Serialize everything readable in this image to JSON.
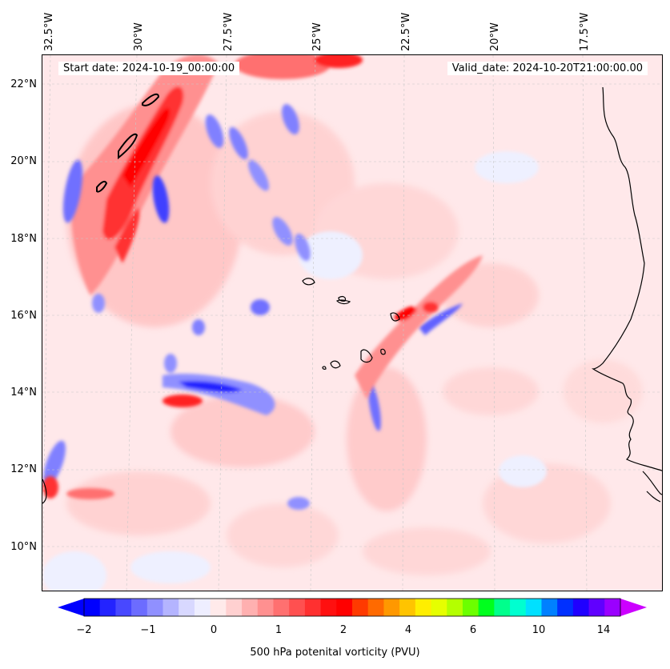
{
  "map": {
    "start_date_text": "Start date: 2024-10-19_00:00:00",
    "valid_date_text": "Valid_date: 2024-10-20T21:00:00.00",
    "lon_labels": [
      "32.5°W",
      "30°W",
      "27.5°W",
      "25°W",
      "22.5°W",
      "20°W",
      "17.5°W"
    ],
    "lat_labels": [
      "22°N",
      "20°N",
      "18°N",
      "16°N",
      "14°N",
      "12°N",
      "10°N"
    ],
    "background_color": "#ffe8ea",
    "coastline_color": "#000000"
  },
  "colorbar": {
    "label": "500 hPa potenital vorticity (PVU)",
    "tick_labels": [
      "−2",
      "−1",
      "0",
      "1",
      "2",
      "4",
      "6",
      "10",
      "14"
    ],
    "colors": [
      "#0000ff",
      "#2323ff",
      "#4848ff",
      "#6c6cff",
      "#9090ff",
      "#b4b4ff",
      "#d8d8ff",
      "#eeeeff",
      "#ffeaea",
      "#ffd0d0",
      "#ffb0b0",
      "#ff9090",
      "#ff7070",
      "#ff5050",
      "#ff3030",
      "#ff1010",
      "#ff0000",
      "#ff3a00",
      "#ff6a00",
      "#ff9800",
      "#ffc400",
      "#ffee00",
      "#e6ff00",
      "#b4ff00",
      "#6cff00",
      "#00ff1e",
      "#00ff8c",
      "#00ffd0",
      "#00e0ff",
      "#0080ff",
      "#0030ff",
      "#2000ff",
      "#6000ff",
      "#9a00ff"
    ],
    "extend_low_color": "#0000ff",
    "extend_high_color": "#cc00ff"
  }
}
